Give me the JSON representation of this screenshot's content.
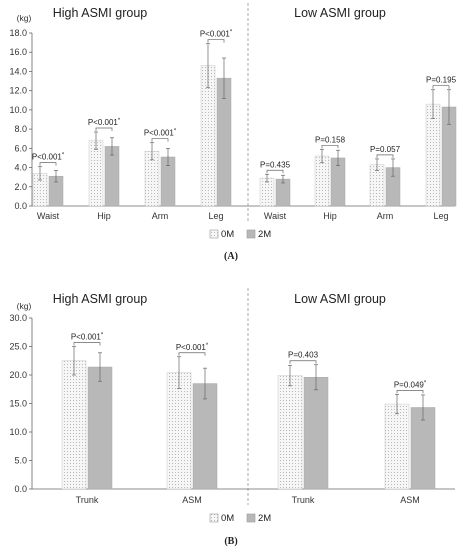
{
  "chart_data": [
    {
      "type": "bar",
      "panel_label": "(A)",
      "ylabel": "(kg)",
      "ylim": [
        0,
        18
      ],
      "yticks": [
        "0.0",
        "2.0",
        "4.0",
        "6.0",
        "8.0",
        "10.0",
        "12.0",
        "14.0",
        "16.0",
        "18.0"
      ],
      "group_titles": [
        "High ASMI group",
        "Low ASMI group"
      ],
      "categories": [
        "Waist",
        "Hip",
        "Arm",
        "Leg",
        "Waist",
        "Hip",
        "Arm",
        "Leg"
      ],
      "series": [
        {
          "name": "0M",
          "values": [
            3.4,
            6.8,
            5.7,
            14.6,
            2.9,
            5.2,
            4.3,
            10.6
          ],
          "errors": [
            0.7,
            0.9,
            0.9,
            2.3,
            0.4,
            0.7,
            0.6,
            1.5
          ]
        },
        {
          "name": "2M",
          "values": [
            3.1,
            6.2,
            5.1,
            13.3,
            2.8,
            5.0,
            4.0,
            10.3
          ],
          "errors": [
            0.6,
            0.9,
            0.9,
            2.1,
            0.4,
            0.8,
            0.9,
            1.8
          ]
        }
      ],
      "p_labels": [
        "P<0.001*",
        "P<0.001*",
        "P<0.001*",
        "P<0.001*",
        "P=0.435",
        "P=0.158",
        "P=0.057",
        "P=0.195"
      ],
      "legend": [
        "0M",
        "2M"
      ],
      "legend_position": "bottom",
      "grid": false
    },
    {
      "type": "bar",
      "panel_label": "(B)",
      "ylabel": "(kg)",
      "ylim": [
        0,
        30
      ],
      "yticks": [
        "0.0",
        "5.0",
        "10.0",
        "15.0",
        "20.0",
        "25.0",
        "30.0"
      ],
      "group_titles": [
        "High ASMI group",
        "Low ASMI group"
      ],
      "categories": [
        "Trunk",
        "ASM",
        "Trunk",
        "ASM"
      ],
      "series": [
        {
          "name": "0M",
          "values": [
            22.5,
            20.4,
            19.9,
            14.9
          ],
          "errors": [
            2.5,
            2.8,
            1.8,
            1.7
          ]
        },
        {
          "name": "2M",
          "values": [
            21.4,
            18.5,
            19.6,
            14.3
          ],
          "errors": [
            2.5,
            2.7,
            2.2,
            2.2
          ]
        }
      ],
      "p_labels": [
        "P<0.001*",
        "P<0.001*",
        "P=0.403",
        "P=0.049*"
      ],
      "legend": [
        "0M",
        "2M"
      ],
      "legend_position": "bottom",
      "grid": false
    }
  ]
}
